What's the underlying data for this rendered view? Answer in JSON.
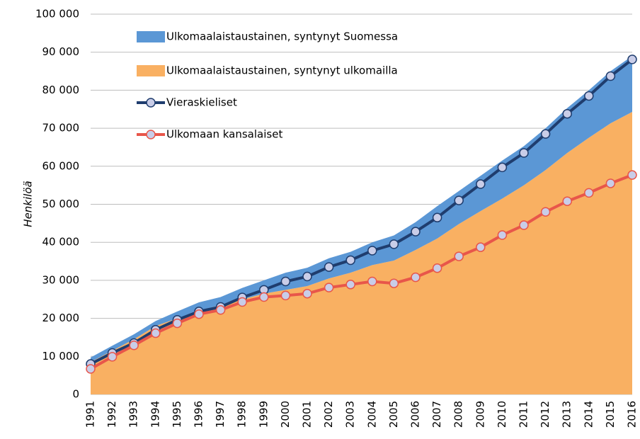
{
  "chart_data": {
    "type": "area",
    "y_label": "Henkilöä",
    "categories": [
      "1991",
      "1992",
      "1993",
      "1994",
      "1995",
      "1996",
      "1997",
      "1998",
      "1999",
      "2000",
      "2001",
      "2002",
      "2003",
      "2004",
      "2005",
      "2006",
      "2007",
      "2008",
      "2009",
      "2010",
      "2011",
      "2012",
      "2013",
      "2014",
      "2015",
      "2016"
    ],
    "series": [
      {
        "name": "Ulkomaalaistaustainen, syntynyt Suomessa",
        "type": "area",
        "color": "#5b97d5",
        "values": [
          1.2,
          1.3,
          1.3,
          1.3,
          1.8,
          2.2,
          2.1,
          3,
          3.5,
          4.5,
          4.8,
          5.3,
          5.5,
          6,
          6.6,
          7.3,
          8.5,
          8.7,
          9.3,
          10,
          10.3,
          11,
          11.8,
          12.5,
          13.7,
          14.7
        ]
      },
      {
        "name": "Ulkomaalaistaustainen, syntynyt ulkomailla",
        "type": "area",
        "color": "#f9b062",
        "values": [
          8.5,
          11.5,
          14.5,
          18,
          20,
          22,
          23.5,
          25,
          26.5,
          27.5,
          28.5,
          30.5,
          32,
          34,
          35.2,
          38,
          41,
          44.8,
          48.2,
          51.5,
          55,
          59,
          63.5,
          67.5,
          71.3,
          74.3
        ]
      },
      {
        "name": "Vieraskieliset",
        "type": "line",
        "color": "#1f3d6e",
        "values": [
          8,
          10.9,
          13.5,
          17,
          19.6,
          21.8,
          23,
          25.5,
          27.5,
          29.7,
          31,
          33.5,
          35.3,
          37.8,
          39.5,
          42.8,
          46.5,
          51,
          55.3,
          59.7,
          63.5,
          68.5,
          73.8,
          78.5,
          83.7,
          88.1
        ]
      },
      {
        "name": "Ulkomaan kansalaiset",
        "type": "line",
        "color": "#e8564a",
        "values": [
          6.7,
          9.9,
          12.9,
          16.1,
          18.7,
          21.1,
          22.2,
          24.3,
          25.6,
          26,
          26.5,
          28.1,
          28.9,
          29.7,
          29.2,
          30.8,
          33.2,
          36.3,
          38.7,
          41.9,
          44.5,
          48,
          50.8,
          53,
          55.5,
          57.7
        ]
      }
    ],
    "ylim": [
      0,
      100
    ],
    "yticks": [
      {
        "value": 0,
        "label": "0"
      },
      {
        "value": 10,
        "label": "10 000"
      },
      {
        "value": 20,
        "label": "20 000"
      },
      {
        "value": 30,
        "label": "30 000"
      },
      {
        "value": 40,
        "label": "40 000"
      },
      {
        "value": 50,
        "label": "50 000"
      },
      {
        "value": 60,
        "label": "60 000"
      },
      {
        "value": 70,
        "label": "70 000"
      },
      {
        "value": 80,
        "label": "80 000"
      },
      {
        "value": 90,
        "label": "90 000"
      },
      {
        "value": 100,
        "label": "100 000"
      }
    ],
    "grid": true,
    "legend": "top-left"
  }
}
